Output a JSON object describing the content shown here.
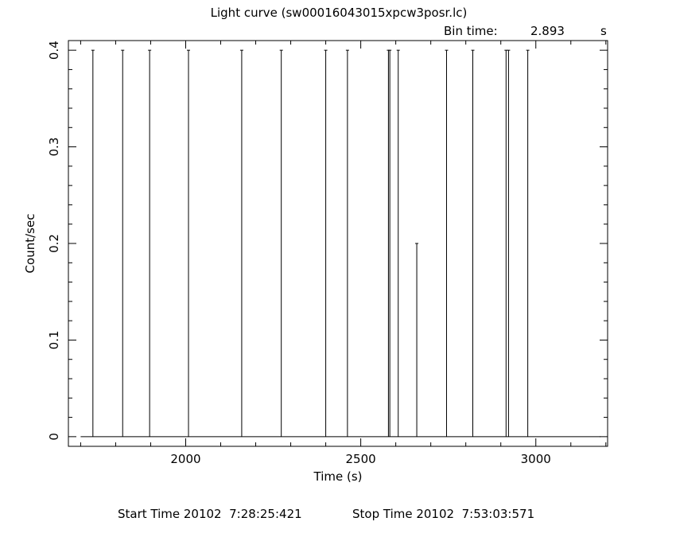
{
  "chart_data": {
    "type": "line",
    "title": "Light curve (sw00016043015xpcw3posr.lc)",
    "bin_time_label": "Bin time:",
    "bin_time_value": "2.893",
    "bin_time_unit": "s",
    "xlabel": "Time (s)",
    "ylabel": "Count/sec",
    "xlim": [
      1665,
      3205
    ],
    "ylim": [
      -0.01,
      0.41
    ],
    "x_ticks": [
      {
        "value": 2000,
        "label": "2000"
      },
      {
        "value": 2500,
        "label": "2500"
      },
      {
        "value": 3000,
        "label": "3000"
      }
    ],
    "y_ticks": [
      {
        "value": 0,
        "label": "0"
      },
      {
        "value": 0.1,
        "label": "0.1"
      },
      {
        "value": 0.2,
        "label": "0.2"
      },
      {
        "value": 0.3,
        "label": "0.3"
      },
      {
        "value": 0.4,
        "label": "0.4"
      }
    ],
    "baseline": {
      "x_start": 1700,
      "x_end": 3185,
      "y": 0
    },
    "spikes": [
      {
        "x": 1735,
        "y": 0.4
      },
      {
        "x": 1820,
        "y": 0.4
      },
      {
        "x": 1897,
        "y": 0.4
      },
      {
        "x": 2008,
        "y": 0.4
      },
      {
        "x": 2160,
        "y": 0.4
      },
      {
        "x": 2273,
        "y": 0.4
      },
      {
        "x": 2400,
        "y": 0.4
      },
      {
        "x": 2462,
        "y": 0.4
      },
      {
        "x": 2579,
        "y": 0.4
      },
      {
        "x": 2583,
        "y": 0.4
      },
      {
        "x": 2607,
        "y": 0.4
      },
      {
        "x": 2660,
        "y": 0.2
      },
      {
        "x": 2745,
        "y": 0.4
      },
      {
        "x": 2820,
        "y": 0.4
      },
      {
        "x": 2915,
        "y": 0.4
      },
      {
        "x": 2922,
        "y": 0.4
      },
      {
        "x": 2977,
        "y": 0.4
      }
    ],
    "grid": false,
    "legend": "none"
  },
  "footer": {
    "start_time": "Start Time 20102  7:28:25:421",
    "stop_time": "Stop Time 20102  7:53:03:571"
  }
}
